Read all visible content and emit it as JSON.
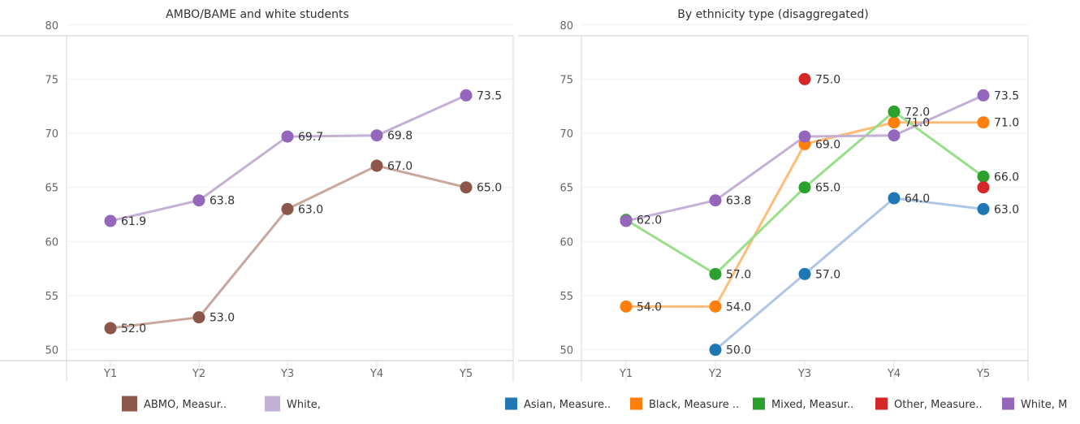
{
  "chart_data": [
    {
      "type": "line",
      "title": "AMBO/BAME and white students",
      "categories": [
        "Y1",
        "Y2",
        "Y3",
        "Y4",
        "Y5"
      ],
      "ylim": [
        49,
        80
      ],
      "yticks": [
        50,
        55,
        60,
        65,
        70,
        75,
        80
      ],
      "grid": true,
      "legend_position": "bottom",
      "series": [
        {
          "name": "ABMO, Measur..",
          "color": "#8c564b",
          "line_color": "#c9a79d",
          "values": [
            52.0,
            53.0,
            63.0,
            67.0,
            65.0
          ],
          "labels": [
            "52.0",
            "53.0",
            "63.0",
            "67.0",
            "65.0"
          ]
        },
        {
          "name": "White,",
          "color": "#9467bd",
          "line_color": "#c5b0d5",
          "legend_color": "#c5b0d5",
          "values": [
            61.9,
            63.8,
            69.7,
            69.8,
            73.5
          ],
          "labels": [
            "61.9",
            "63.8",
            "69.7",
            "69.8",
            "73.5"
          ]
        }
      ]
    },
    {
      "type": "line",
      "title": "By ethnicity type (disaggregated)",
      "categories": [
        "Y1",
        "Y2",
        "Y3",
        "Y4",
        "Y5"
      ],
      "ylim": [
        49,
        80
      ],
      "yticks": [
        50,
        55,
        60,
        65,
        70,
        75,
        80
      ],
      "grid": true,
      "legend_position": "bottom",
      "series": [
        {
          "name": "Asian, Measure..",
          "color": "#1f77b4",
          "line_color": "#aec7e8",
          "values": [
            null,
            50.0,
            57.0,
            64.0,
            63.0
          ],
          "labels": [
            null,
            "50.0",
            "57.0",
            "64.0",
            "63.0"
          ]
        },
        {
          "name": "Black, Measure ..",
          "color": "#ff7f0e",
          "line_color": "#ffbb78",
          "values": [
            54.0,
            54.0,
            69.0,
            71.0,
            71.0
          ],
          "labels": [
            "54.0",
            "54.0",
            "69.0",
            "71.0",
            "71.0"
          ]
        },
        {
          "name": "Mixed, Measur..",
          "color": "#2ca02c",
          "line_color": "#98df8a",
          "values": [
            62.0,
            57.0,
            65.0,
            72.0,
            66.0
          ],
          "labels": [
            "62.0",
            "57.0",
            "65.0",
            "72.0",
            "66.0"
          ]
        },
        {
          "name": "Other, Measure..",
          "color": "#d62728",
          "line_color": "#ff9896",
          "values": [
            null,
            null,
            75.0,
            null,
            65.0
          ],
          "labels": [
            null,
            null,
            "75.0",
            null,
            null
          ]
        },
        {
          "name": "White, M",
          "color": "#9467bd",
          "line_color": "#c5b0d5",
          "values": [
            61.9,
            63.8,
            69.7,
            69.8,
            73.5
          ],
          "labels": [
            null,
            "63.8",
            null,
            null,
            "73.5"
          ]
        }
      ]
    }
  ]
}
